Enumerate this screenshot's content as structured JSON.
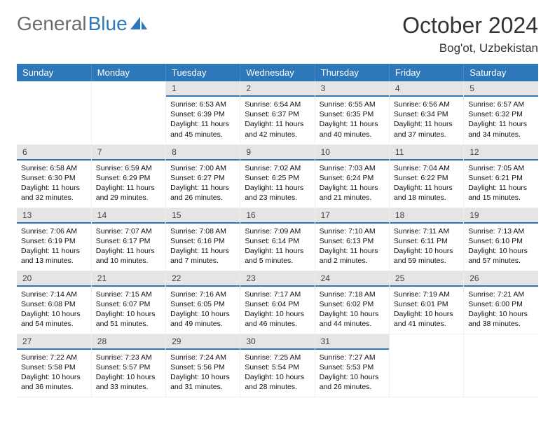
{
  "logo": {
    "part1": "General",
    "part2": "Blue"
  },
  "title": "October 2024",
  "location": "Bog'ot, Uzbekistan",
  "brand_color": "#2e77b8",
  "gray_color": "#6b6b6b",
  "header_bg": "#e5e5e5",
  "accent_line": "#2e77b8",
  "day_headers": [
    "Sunday",
    "Monday",
    "Tuesday",
    "Wednesday",
    "Thursday",
    "Friday",
    "Saturday"
  ],
  "weeks": [
    [
      null,
      null,
      {
        "n": "1",
        "sr": "6:53 AM",
        "ss": "6:39 PM",
        "dl": "11 hours and 45 minutes."
      },
      {
        "n": "2",
        "sr": "6:54 AM",
        "ss": "6:37 PM",
        "dl": "11 hours and 42 minutes."
      },
      {
        "n": "3",
        "sr": "6:55 AM",
        "ss": "6:35 PM",
        "dl": "11 hours and 40 minutes."
      },
      {
        "n": "4",
        "sr": "6:56 AM",
        "ss": "6:34 PM",
        "dl": "11 hours and 37 minutes."
      },
      {
        "n": "5",
        "sr": "6:57 AM",
        "ss": "6:32 PM",
        "dl": "11 hours and 34 minutes."
      }
    ],
    [
      {
        "n": "6",
        "sr": "6:58 AM",
        "ss": "6:30 PM",
        "dl": "11 hours and 32 minutes."
      },
      {
        "n": "7",
        "sr": "6:59 AM",
        "ss": "6:29 PM",
        "dl": "11 hours and 29 minutes."
      },
      {
        "n": "8",
        "sr": "7:00 AM",
        "ss": "6:27 PM",
        "dl": "11 hours and 26 minutes."
      },
      {
        "n": "9",
        "sr": "7:02 AM",
        "ss": "6:25 PM",
        "dl": "11 hours and 23 minutes."
      },
      {
        "n": "10",
        "sr": "7:03 AM",
        "ss": "6:24 PM",
        "dl": "11 hours and 21 minutes."
      },
      {
        "n": "11",
        "sr": "7:04 AM",
        "ss": "6:22 PM",
        "dl": "11 hours and 18 minutes."
      },
      {
        "n": "12",
        "sr": "7:05 AM",
        "ss": "6:21 PM",
        "dl": "11 hours and 15 minutes."
      }
    ],
    [
      {
        "n": "13",
        "sr": "7:06 AM",
        "ss": "6:19 PM",
        "dl": "11 hours and 13 minutes."
      },
      {
        "n": "14",
        "sr": "7:07 AM",
        "ss": "6:17 PM",
        "dl": "11 hours and 10 minutes."
      },
      {
        "n": "15",
        "sr": "7:08 AM",
        "ss": "6:16 PM",
        "dl": "11 hours and 7 minutes."
      },
      {
        "n": "16",
        "sr": "7:09 AM",
        "ss": "6:14 PM",
        "dl": "11 hours and 5 minutes."
      },
      {
        "n": "17",
        "sr": "7:10 AM",
        "ss": "6:13 PM",
        "dl": "11 hours and 2 minutes."
      },
      {
        "n": "18",
        "sr": "7:11 AM",
        "ss": "6:11 PM",
        "dl": "10 hours and 59 minutes."
      },
      {
        "n": "19",
        "sr": "7:13 AM",
        "ss": "6:10 PM",
        "dl": "10 hours and 57 minutes."
      }
    ],
    [
      {
        "n": "20",
        "sr": "7:14 AM",
        "ss": "6:08 PM",
        "dl": "10 hours and 54 minutes."
      },
      {
        "n": "21",
        "sr": "7:15 AM",
        "ss": "6:07 PM",
        "dl": "10 hours and 51 minutes."
      },
      {
        "n": "22",
        "sr": "7:16 AM",
        "ss": "6:05 PM",
        "dl": "10 hours and 49 minutes."
      },
      {
        "n": "23",
        "sr": "7:17 AM",
        "ss": "6:04 PM",
        "dl": "10 hours and 46 minutes."
      },
      {
        "n": "24",
        "sr": "7:18 AM",
        "ss": "6:02 PM",
        "dl": "10 hours and 44 minutes."
      },
      {
        "n": "25",
        "sr": "7:19 AM",
        "ss": "6:01 PM",
        "dl": "10 hours and 41 minutes."
      },
      {
        "n": "26",
        "sr": "7:21 AM",
        "ss": "6:00 PM",
        "dl": "10 hours and 38 minutes."
      }
    ],
    [
      {
        "n": "27",
        "sr": "7:22 AM",
        "ss": "5:58 PM",
        "dl": "10 hours and 36 minutes."
      },
      {
        "n": "28",
        "sr": "7:23 AM",
        "ss": "5:57 PM",
        "dl": "10 hours and 33 minutes."
      },
      {
        "n": "29",
        "sr": "7:24 AM",
        "ss": "5:56 PM",
        "dl": "10 hours and 31 minutes."
      },
      {
        "n": "30",
        "sr": "7:25 AM",
        "ss": "5:54 PM",
        "dl": "10 hours and 28 minutes."
      },
      {
        "n": "31",
        "sr": "7:27 AM",
        "ss": "5:53 PM",
        "dl": "10 hours and 26 minutes."
      },
      null,
      null
    ]
  ],
  "labels": {
    "sunrise": "Sunrise:",
    "sunset": "Sunset:",
    "daylight": "Daylight:"
  }
}
